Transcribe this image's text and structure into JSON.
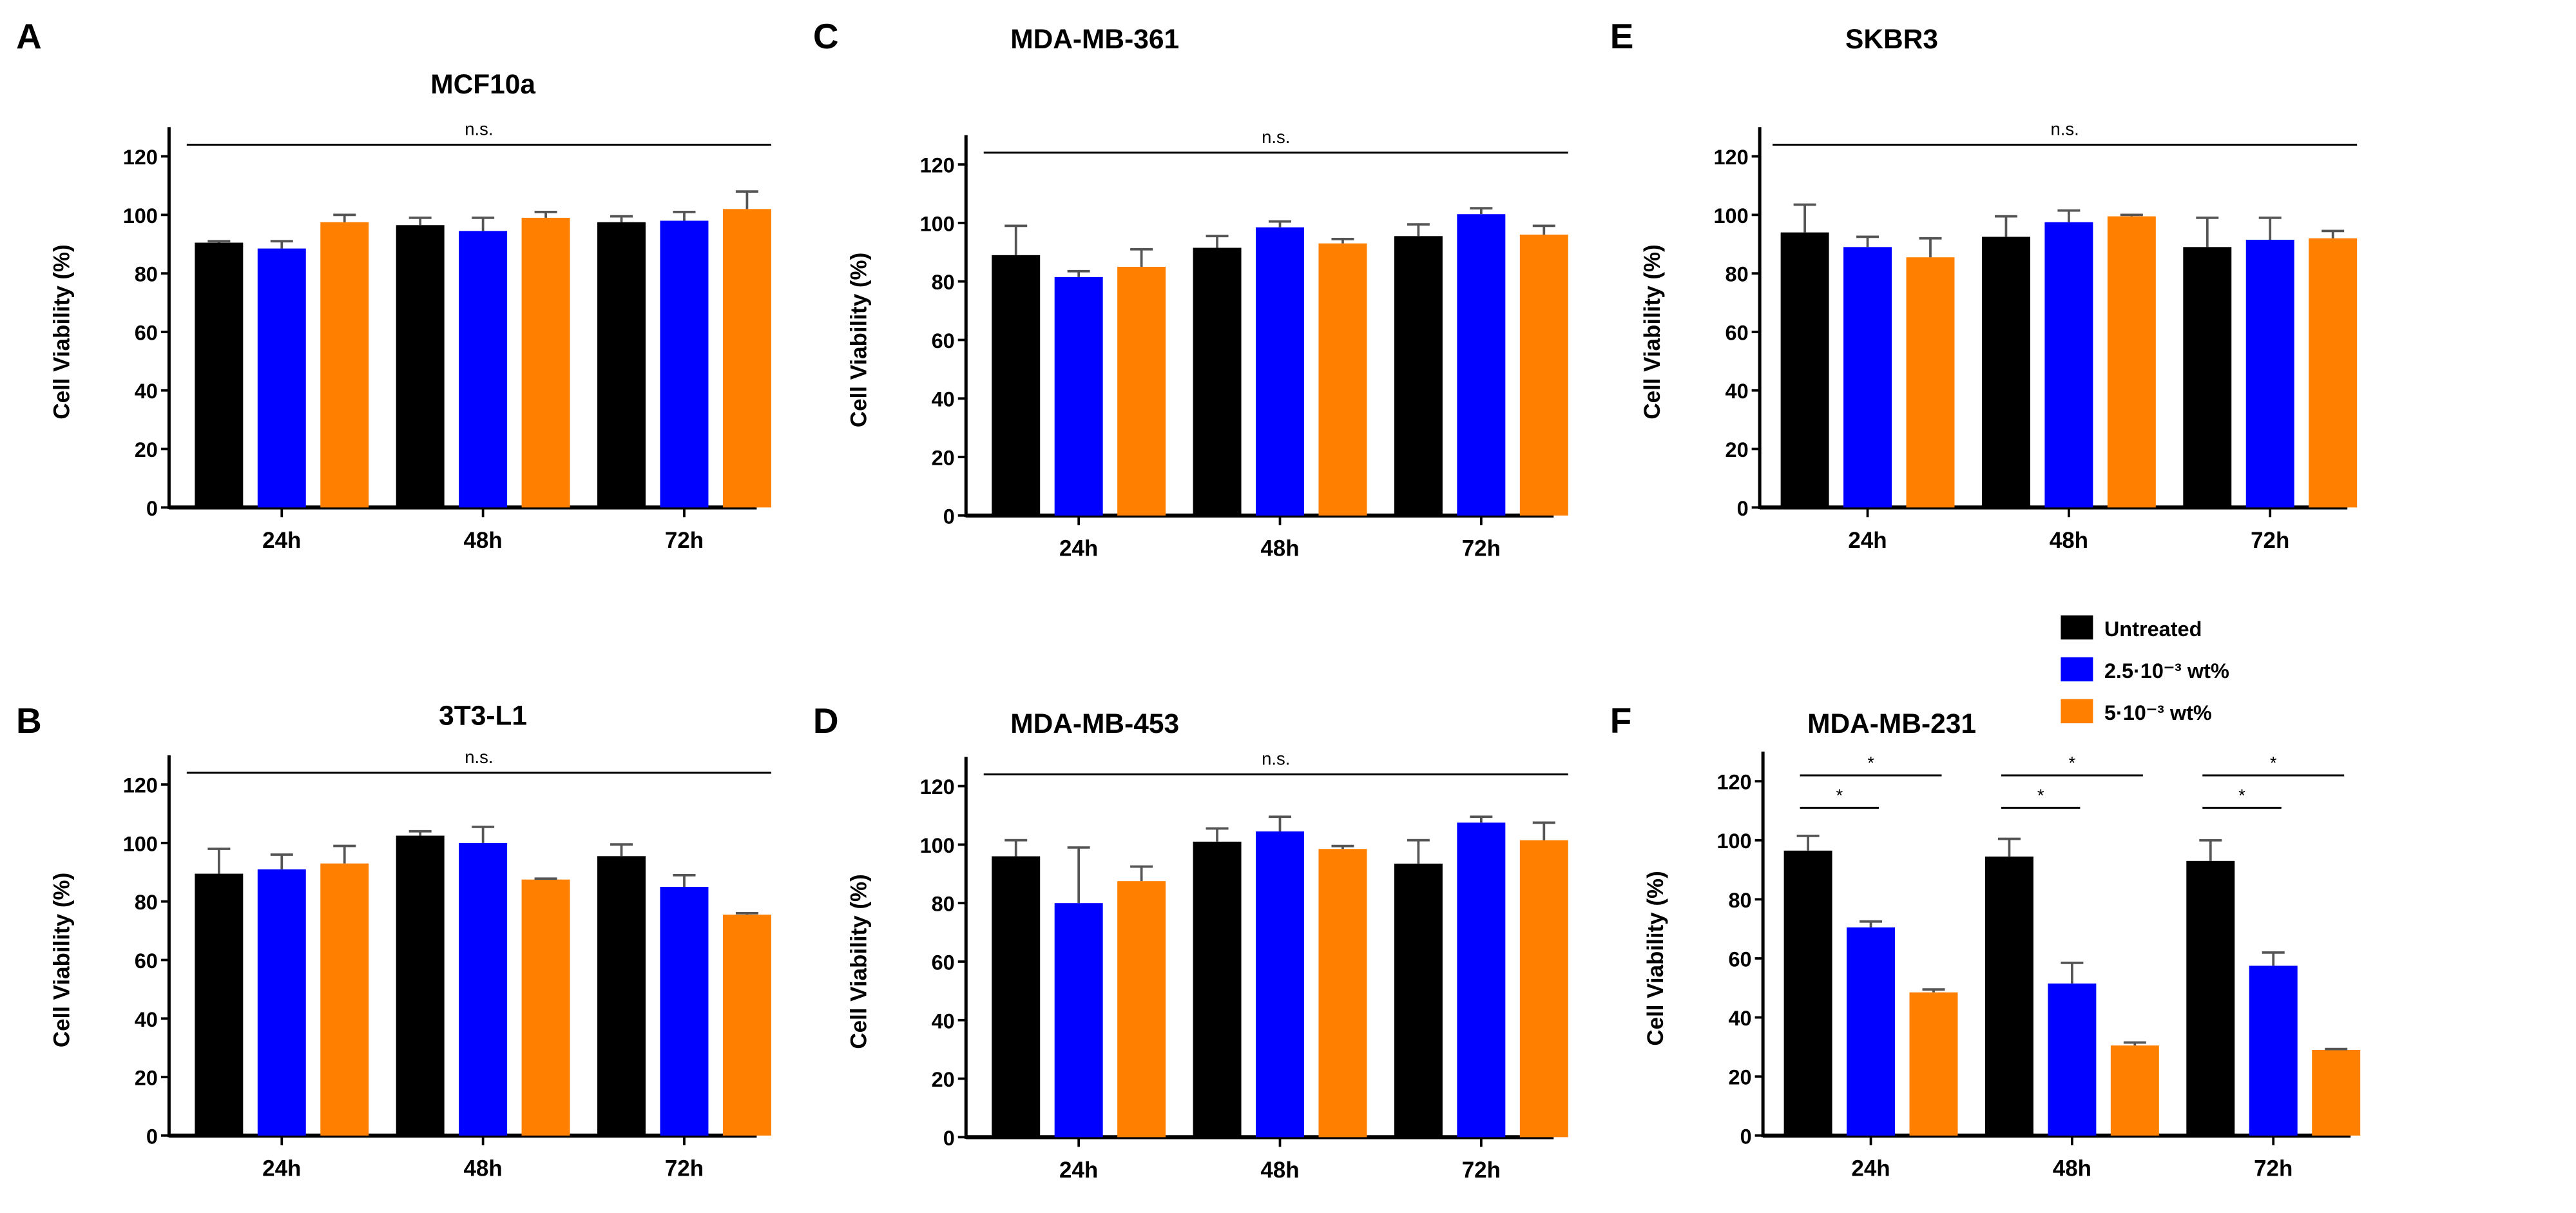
{
  "chart_data": [
    {
      "type": "bar",
      "letter": "A",
      "title": "MCF10a",
      "xlabel": "",
      "ylabel": "Cell  Viability  (%)",
      "ylim": [
        0,
        120
      ],
      "yticks": [
        0,
        20,
        40,
        60,
        80,
        100,
        120
      ],
      "categories": [
        "24h",
        "48h",
        "72h"
      ],
      "series": [
        {
          "name": "Untreated",
          "values": [
            90.5,
            96.5,
            97.5
          ],
          "errors": [
            0.5,
            2.5,
            2
          ]
        },
        {
          "name": "2.5·10⁻³ wt%",
          "values": [
            88.5,
            94.5,
            98
          ],
          "errors": [
            2.5,
            4.5,
            3
          ]
        },
        {
          "name": "5·10⁻³ wt%",
          "values": [
            97.5,
            99,
            102
          ],
          "errors": [
            2.5,
            2,
            6
          ]
        }
      ],
      "annotations": [
        {
          "type": "bracket",
          "text": "n.s.",
          "y": 124,
          "from": "24h",
          "to": "72h"
        }
      ]
    },
    {
      "type": "bar",
      "letter": "B",
      "title": "3T3-L1",
      "xlabel": "",
      "ylabel": "Cell  Viability  (%)",
      "ylim": [
        0,
        120
      ],
      "yticks": [
        0,
        20,
        40,
        60,
        80,
        100,
        120
      ],
      "categories": [
        "24h",
        "48h",
        "72h"
      ],
      "series": [
        {
          "name": "Untreated",
          "values": [
            89.5,
            102.5,
            95.5
          ],
          "errors": [
            8.5,
            1.5,
            4
          ]
        },
        {
          "name": "2.5·10⁻³ wt%",
          "values": [
            91,
            100,
            85
          ],
          "errors": [
            5,
            5.5,
            4
          ]
        },
        {
          "name": "5·10⁻³ wt%",
          "values": [
            93,
            87.5,
            75.5
          ],
          "errors": [
            6,
            0.3,
            0.5
          ]
        }
      ],
      "annotations": [
        {
          "type": "bracket",
          "text": "n.s.",
          "y": 124,
          "from": "24h",
          "to": "72h"
        }
      ]
    },
    {
      "type": "bar",
      "letter": "C",
      "title": "MDA-MB-361",
      "xlabel": "",
      "ylabel": "Cell  Viability  (%)",
      "ylim": [
        0,
        120
      ],
      "yticks": [
        0,
        20,
        40,
        60,
        80,
        100,
        120
      ],
      "categories": [
        "24h",
        "48h",
        "72h"
      ],
      "series": [
        {
          "name": "Untreated",
          "values": [
            89,
            91.5,
            95.5
          ],
          "errors": [
            10,
            4,
            4
          ]
        },
        {
          "name": "2.5·10⁻³ wt%",
          "values": [
            81.5,
            98.5,
            103
          ],
          "errors": [
            2,
            2,
            2
          ]
        },
        {
          "name": "5·10⁻³ wt%",
          "values": [
            85,
            93,
            96
          ],
          "errors": [
            6,
            1.5,
            3
          ]
        }
      ],
      "annotations": [
        {
          "type": "bracket",
          "text": "n.s.",
          "y": 124,
          "from": "24h",
          "to": "72h"
        }
      ]
    },
    {
      "type": "bar",
      "letter": "D",
      "title": "MDA-MB-453",
      "xlabel": "",
      "ylabel": "Cell  Viability  (%)",
      "ylim": [
        0,
        120
      ],
      "yticks": [
        0,
        20,
        40,
        60,
        80,
        100,
        120
      ],
      "categories": [
        "24h",
        "48h",
        "72h"
      ],
      "series": [
        {
          "name": "Untreated",
          "values": [
            96,
            101,
            93.5
          ],
          "errors": [
            5.5,
            4.5,
            8
          ]
        },
        {
          "name": "2.5·10⁻³ wt%",
          "values": [
            80,
            104.5,
            107.5
          ],
          "errors": [
            19,
            5,
            2
          ]
        },
        {
          "name": "5·10⁻³ wt%",
          "values": [
            87.5,
            98.5,
            101.5
          ],
          "errors": [
            5,
            1,
            6
          ]
        }
      ],
      "annotations": [
        {
          "type": "bracket",
          "text": "n.s.",
          "y": 124,
          "from": "24h",
          "to": "72h"
        }
      ]
    },
    {
      "type": "bar",
      "letter": "E",
      "title": "SKBR3",
      "xlabel": "",
      "ylabel": "Cell  Viability  (%)",
      "ylim": [
        0,
        120
      ],
      "yticks": [
        0,
        20,
        40,
        60,
        80,
        100,
        120
      ],
      "categories": [
        "24h",
        "48h",
        "72h"
      ],
      "series": [
        {
          "name": "Untreated",
          "values": [
            94,
            92.5,
            89
          ],
          "errors": [
            9.5,
            7,
            10
          ]
        },
        {
          "name": "2.5·10⁻³ wt%",
          "values": [
            89,
            97.5,
            91.5
          ],
          "errors": [
            3.5,
            4,
            7.5
          ]
        },
        {
          "name": "5·10⁻³ wt%",
          "values": [
            85.5,
            99.5,
            92
          ],
          "errors": [
            6.5,
            0.5,
            2.5
          ]
        }
      ],
      "annotations": [
        {
          "type": "bracket",
          "text": "n.s.",
          "y": 124,
          "from": "24h",
          "to": "72h"
        }
      ]
    },
    {
      "type": "bar",
      "letter": "F",
      "title": "MDA-MB-231",
      "xlabel": "",
      "ylabel": "Cell  Viability  (%)",
      "ylim": [
        0,
        120
      ],
      "yticks": [
        0,
        20,
        40,
        60,
        80,
        100,
        120
      ],
      "categories": [
        "24h",
        "48h",
        "72h"
      ],
      "series": [
        {
          "name": "Untreated",
          "values": [
            96.5,
            94.5,
            93
          ],
          "errors": [
            5,
            6,
            7
          ]
        },
        {
          "name": "2.5·10⁻³ wt%",
          "values": [
            70.5,
            51.5,
            57.5
          ],
          "errors": [
            2,
            7,
            4.5
          ]
        },
        {
          "name": "5·10⁻³ wt%",
          "values": [
            48.5,
            30.5,
            29
          ],
          "errors": [
            1,
            1,
            0.3
          ]
        }
      ],
      "annotations": [
        {
          "type": "pair",
          "text": "*",
          "category": "24h",
          "from": 0,
          "to": 1,
          "y": 111
        },
        {
          "type": "pair",
          "text": "*",
          "category": "24h",
          "from": 0,
          "to": 2,
          "y": 122
        },
        {
          "type": "pair",
          "text": "*",
          "category": "48h",
          "from": 0,
          "to": 1,
          "y": 111
        },
        {
          "type": "pair",
          "text": "*",
          "category": "48h",
          "from": 0,
          "to": 2,
          "y": 122
        },
        {
          "type": "pair",
          "text": "*",
          "category": "72h",
          "from": 0,
          "to": 1,
          "y": 111
        },
        {
          "type": "pair",
          "text": "*",
          "category": "72h",
          "from": 0,
          "to": 2,
          "y": 122
        }
      ]
    }
  ],
  "legend": {
    "placement": "top-right",
    "items": [
      {
        "label": "Untreated",
        "color": "#000000"
      },
      {
        "label": "2.5·10⁻³ wt%",
        "color": "#0000FF"
      },
      {
        "label": "5·10⁻³ wt%",
        "color": "#FF8000"
      }
    ]
  },
  "colors": [
    "#000000",
    "#0000FF",
    "#FF8000"
  ],
  "error_color": "#555555"
}
